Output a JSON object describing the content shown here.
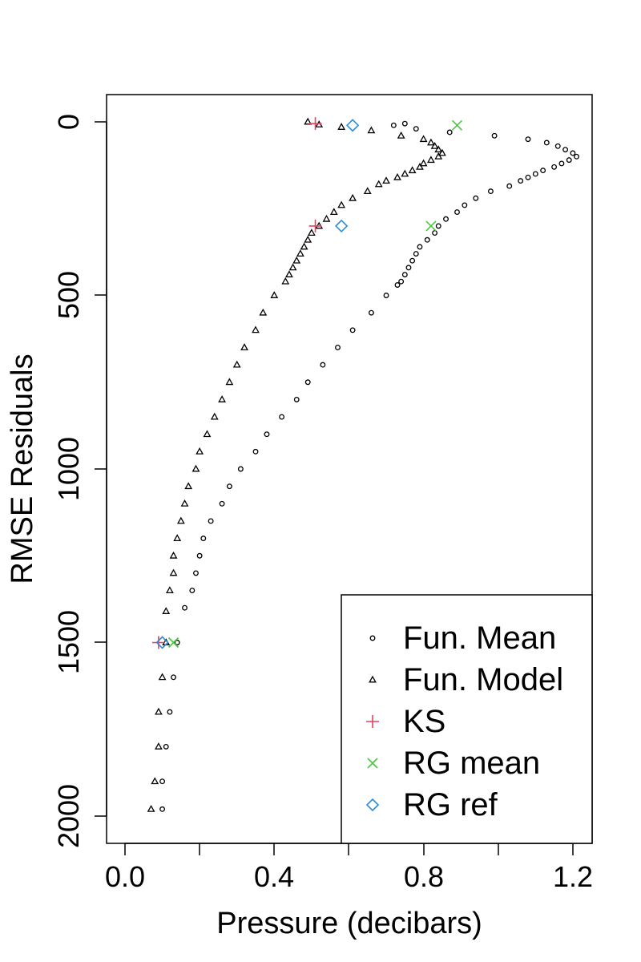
{
  "chart_data": {
    "type": "scatter",
    "title": "",
    "xlabel": "Pressure (decibars)",
    "ylabel": "RMSE Residuals",
    "xlim": [
      -0.05,
      1.25
    ],
    "ylim": [
      2080,
      -80
    ],
    "xticks": [
      "0.0",
      "0.4",
      "0.8",
      "1.2"
    ],
    "xtick_values": [
      0.0,
      0.4,
      0.8,
      1.2
    ],
    "yticks": [
      "0",
      "500",
      "1000",
      "1500",
      "2000"
    ],
    "ytick_values": [
      0,
      500,
      1000,
      1500,
      2000
    ],
    "grid": false,
    "legend_position": "bottom-right",
    "series": [
      {
        "name": "Fun. Mean",
        "marker": "circle",
        "color": "#000000",
        "points": [
          [
            0.72,
            10
          ],
          [
            0.75,
            5
          ],
          [
            0.78,
            20
          ],
          [
            0.87,
            30
          ],
          [
            0.99,
            40
          ],
          [
            1.08,
            50
          ],
          [
            1.13,
            60
          ],
          [
            1.16,
            70
          ],
          [
            1.18,
            80
          ],
          [
            1.2,
            90
          ],
          [
            1.21,
            100
          ],
          [
            1.19,
            110
          ],
          [
            1.17,
            120
          ],
          [
            1.15,
            130
          ],
          [
            1.12,
            140
          ],
          [
            1.1,
            150
          ],
          [
            1.08,
            160
          ],
          [
            1.06,
            170
          ],
          [
            1.03,
            185
          ],
          [
            0.98,
            200
          ],
          [
            0.94,
            220
          ],
          [
            0.91,
            240
          ],
          [
            0.89,
            260
          ],
          [
            0.86,
            280
          ],
          [
            0.84,
            300
          ],
          [
            0.83,
            320
          ],
          [
            0.81,
            340
          ],
          [
            0.79,
            360
          ],
          [
            0.78,
            380
          ],
          [
            0.77,
            400
          ],
          [
            0.76,
            420
          ],
          [
            0.75,
            440
          ],
          [
            0.74,
            460
          ],
          [
            0.73,
            470
          ],
          [
            0.7,
            500
          ],
          [
            0.66,
            550
          ],
          [
            0.61,
            600
          ],
          [
            0.57,
            650
          ],
          [
            0.53,
            700
          ],
          [
            0.49,
            750
          ],
          [
            0.46,
            800
          ],
          [
            0.42,
            850
          ],
          [
            0.38,
            900
          ],
          [
            0.35,
            950
          ],
          [
            0.31,
            1000
          ],
          [
            0.28,
            1050
          ],
          [
            0.26,
            1100
          ],
          [
            0.23,
            1150
          ],
          [
            0.21,
            1200
          ],
          [
            0.2,
            1250
          ],
          [
            0.19,
            1300
          ],
          [
            0.18,
            1350
          ],
          [
            0.16,
            1400
          ],
          [
            0.14,
            1500
          ],
          [
            0.13,
            1600
          ],
          [
            0.12,
            1700
          ],
          [
            0.11,
            1800
          ],
          [
            0.1,
            1900
          ],
          [
            0.1,
            1980
          ]
        ]
      },
      {
        "name": "Fun. Model",
        "marker": "triangle",
        "color": "#000000",
        "points": [
          [
            0.49,
            0
          ],
          [
            0.52,
            8
          ],
          [
            0.58,
            15
          ],
          [
            0.66,
            25
          ],
          [
            0.74,
            40
          ],
          [
            0.8,
            50
          ],
          [
            0.82,
            60
          ],
          [
            0.83,
            70
          ],
          [
            0.84,
            80
          ],
          [
            0.85,
            90
          ],
          [
            0.84,
            100
          ],
          [
            0.82,
            110
          ],
          [
            0.8,
            120
          ],
          [
            0.79,
            130
          ],
          [
            0.77,
            140
          ],
          [
            0.75,
            150
          ],
          [
            0.73,
            160
          ],
          [
            0.7,
            170
          ],
          [
            0.68,
            180
          ],
          [
            0.65,
            200
          ],
          [
            0.61,
            220
          ],
          [
            0.58,
            240
          ],
          [
            0.56,
            260
          ],
          [
            0.54,
            280
          ],
          [
            0.52,
            300
          ],
          [
            0.5,
            320
          ],
          [
            0.49,
            340
          ],
          [
            0.48,
            360
          ],
          [
            0.47,
            380
          ],
          [
            0.46,
            400
          ],
          [
            0.45,
            420
          ],
          [
            0.44,
            440
          ],
          [
            0.43,
            460
          ],
          [
            0.4,
            500
          ],
          [
            0.37,
            550
          ],
          [
            0.35,
            600
          ],
          [
            0.32,
            650
          ],
          [
            0.3,
            700
          ],
          [
            0.28,
            750
          ],
          [
            0.26,
            800
          ],
          [
            0.24,
            850
          ],
          [
            0.22,
            900
          ],
          [
            0.2,
            950
          ],
          [
            0.19,
            1000
          ],
          [
            0.17,
            1050
          ],
          [
            0.16,
            1100
          ],
          [
            0.15,
            1150
          ],
          [
            0.14,
            1200
          ],
          [
            0.13,
            1250
          ],
          [
            0.13,
            1300
          ],
          [
            0.12,
            1350
          ],
          [
            0.11,
            1410
          ],
          [
            0.11,
            1500
          ],
          [
            0.1,
            1600
          ],
          [
            0.09,
            1700
          ],
          [
            0.09,
            1800
          ],
          [
            0.08,
            1900
          ],
          [
            0.07,
            1980
          ]
        ]
      },
      {
        "name": "KS",
        "marker": "plus",
        "color": "#E8415F",
        "points": [
          [
            0.51,
            5
          ],
          [
            0.51,
            300
          ],
          [
            0.09,
            1500
          ]
        ]
      },
      {
        "name": "RG mean",
        "marker": "cross",
        "color": "#4CC740",
        "points": [
          [
            0.89,
            10
          ],
          [
            0.82,
            300
          ],
          [
            0.13,
            1500
          ]
        ]
      },
      {
        "name": "RG ref",
        "marker": "diamond",
        "color": "#2A8CE0",
        "points": [
          [
            0.61,
            10
          ],
          [
            0.58,
            300
          ],
          [
            0.1,
            1500
          ]
        ]
      }
    ]
  }
}
